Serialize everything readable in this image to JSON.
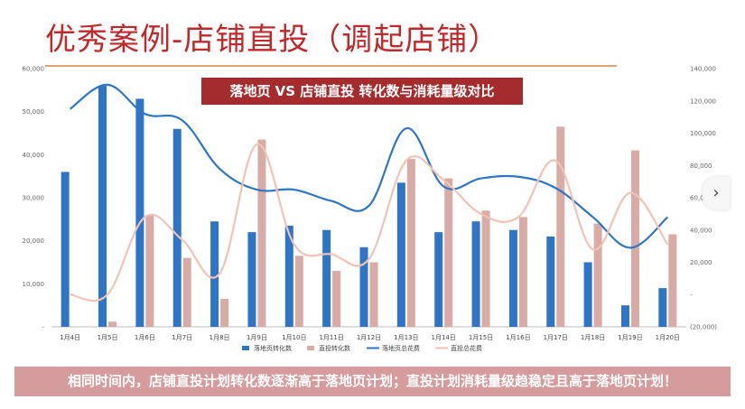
{
  "page": {
    "title": "优秀案例-店铺直投（调起店铺）",
    "footer_text": "相同时间内，店铺直投计划转化数逐渐高于落地页计划；直投计划消耗量级趋稳定且高于落地页计划！",
    "nav_arrow": "chevron-right-icon"
  },
  "colors": {
    "title": "#c0282a",
    "banner_bg": "#a52c2e",
    "footer_bg": "#d69b9d",
    "rule": "#e2a36c",
    "landing_conv": "#2e75c7",
    "direct_conv": "#d8aba6",
    "landing_cost": "#2e75c7",
    "direct_cost": "#f0c3b4"
  },
  "chart_data": {
    "type": "bar",
    "title": "落地页 VS 店铺直投 转化数与消耗量级对比",
    "categories": [
      "1月4日",
      "1月5日",
      "1月6日",
      "1月7日",
      "1月8日",
      "1月9日",
      "1月10日",
      "1月11日",
      "1月12日",
      "1月13日",
      "1月14日",
      "1月15日",
      "1月16日",
      "1月17日",
      "1月18日",
      "1月19日",
      "1月20日"
    ],
    "y_left": {
      "ylim": [
        0,
        60000
      ],
      "ticks": [
        "-",
        "10,000",
        "20,000",
        "30,000",
        "40,000",
        "50,000",
        "60,000"
      ],
      "grid": false
    },
    "y_right": {
      "ylim": [
        -20000,
        140000
      ],
      "ticks": [
        "(20,000)",
        "-",
        "20,000",
        "40,000",
        "60,000",
        "80,000",
        "100,000",
        "120,000",
        "140,000"
      ]
    },
    "legend_position": "bottom",
    "series": [
      {
        "name": "落地页转化数",
        "type": "bar",
        "axis": "left",
        "values": [
          36000,
          56000,
          53000,
          46000,
          24500,
          22000,
          23500,
          22500,
          18500,
          33500,
          22000,
          24500,
          22500,
          21000,
          15000,
          5000,
          9000
        ]
      },
      {
        "name": "直投转化数",
        "type": "bar",
        "axis": "left",
        "values": [
          0,
          1200,
          26000,
          16000,
          6500,
          43500,
          16500,
          13000,
          15000,
          39000,
          34500,
          27000,
          25500,
          46500,
          24000,
          41000,
          21500
        ]
      },
      {
        "name": "落地页总花费",
        "type": "line",
        "axis": "right",
        "values": [
          115000,
          130000,
          112000,
          108000,
          78000,
          65000,
          65000,
          58000,
          55000,
          103000,
          67000,
          72000,
          73000,
          66000,
          48000,
          29000,
          48000
        ]
      },
      {
        "name": "直投总花费",
        "type": "line",
        "axis": "right",
        "values": [
          0,
          0,
          48000,
          34000,
          13000,
          93000,
          31000,
          25000,
          22000,
          83000,
          71000,
          50000,
          48000,
          83000,
          28000,
          63000,
          31000
        ]
      }
    ]
  }
}
